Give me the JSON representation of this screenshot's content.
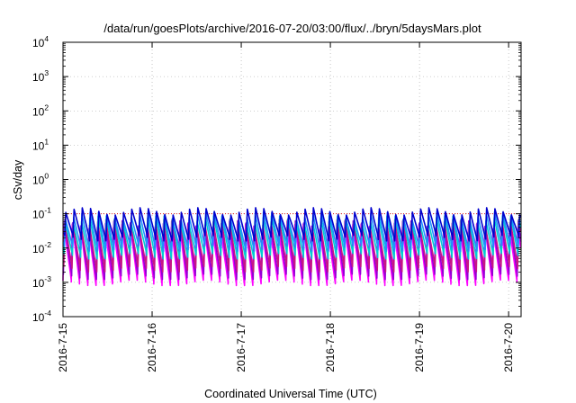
{
  "chart_data": {
    "type": "line",
    "title": "/data/run/goesPlots/archive/2016-07-20/03:00/flux/../bryn/5daysMars.plot",
    "xlabel": "Coordinated Universal Time (UTC)",
    "ylabel": "cSv/day",
    "yscale": "log",
    "ylim": [
      0.0001,
      10000
    ],
    "y_ticks": [
      {
        "base": "10",
        "exp": "-4"
      },
      {
        "base": "10",
        "exp": "-3"
      },
      {
        "base": "10",
        "exp": "-2"
      },
      {
        "base": "10",
        "exp": "-1"
      },
      {
        "base": "10",
        "exp": "0"
      },
      {
        "base": "10",
        "exp": "1"
      },
      {
        "base": "10",
        "exp": "2"
      },
      {
        "base": "10",
        "exp": "3"
      },
      {
        "base": "10",
        "exp": "4"
      }
    ],
    "x_ticks": [
      "2016-7-15",
      "2016-7-16",
      "2016-7-17",
      "2016-7-18",
      "2016-7-19",
      "2016-7-20"
    ],
    "xlim_days": [
      0,
      5.14
    ],
    "grid": true,
    "reference_line": {
      "y": 0.1,
      "color": "#e41a1c"
    },
    "periodic_pattern": {
      "cycles_per_day": 10.8,
      "description": "sawtooth: fast rise then decay each cycle"
    },
    "series": [
      {
        "color": "#ff00ff",
        "peak": 0.04,
        "trough": 0.001
      },
      {
        "color": "#9400d3",
        "peak": 0.05,
        "trough": 0.0015
      },
      {
        "color": "#c71585",
        "peak": 0.055,
        "trough": 0.0025
      },
      {
        "color": "#00ced1",
        "peak": 0.07,
        "trough": 0.006
      },
      {
        "color": "#1e90ff",
        "peak": 0.09,
        "trough": 0.01
      },
      {
        "color": "#0000cd",
        "peak": 0.12,
        "trough": 0.02
      }
    ]
  }
}
